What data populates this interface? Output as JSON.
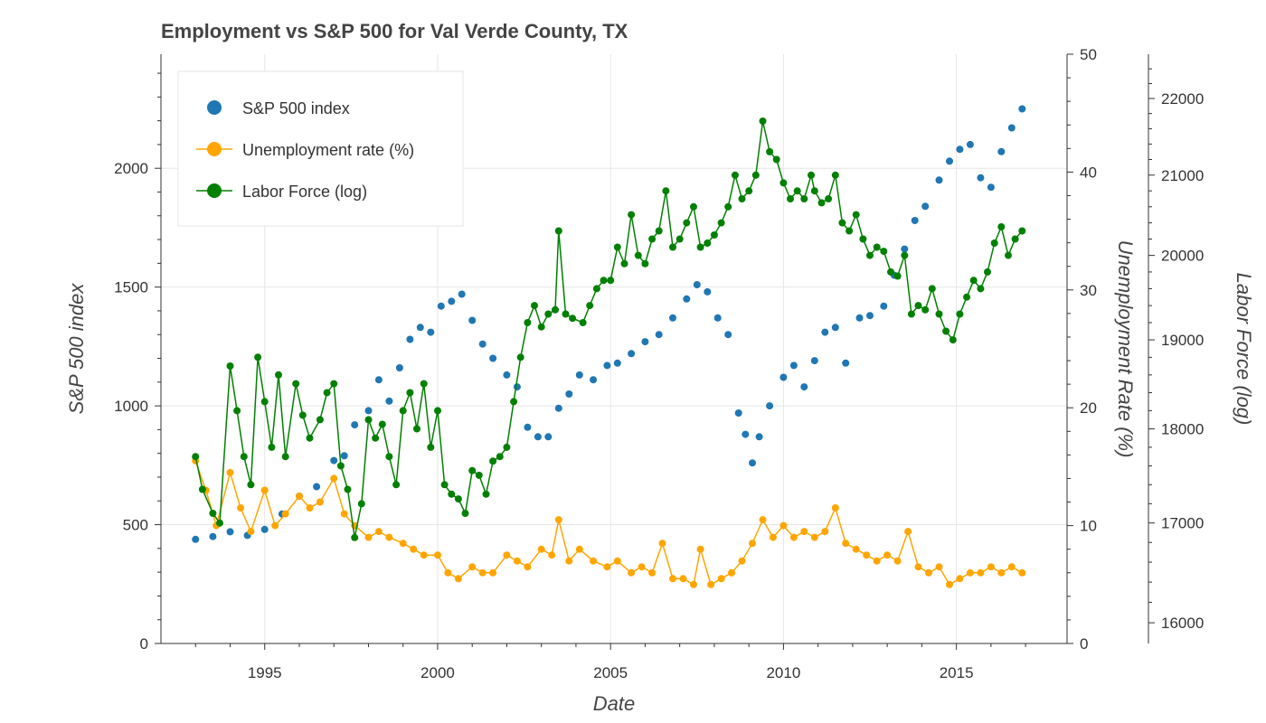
{
  "chart_data": {
    "type": "line",
    "title": "Employment vs S&P 500 for Val Verde County, TX",
    "xlabel": "Date",
    "ylabel": "S&P 500 index",
    "y2label": "Unemployment Rate (%)",
    "y3label": "Labor Force (log)",
    "xlim": [
      1992.0,
      2018.2
    ],
    "ylim": [
      0,
      2480
    ],
    "y2lim": [
      0,
      50
    ],
    "y3lim": [
      15800,
      22600
    ],
    "x_ticks": [
      "1995",
      "2000",
      "2005",
      "2010",
      "2015"
    ],
    "y_ticks": [
      "0",
      "500",
      "1000",
      "1500",
      "2000"
    ],
    "y2_ticks": [
      "0",
      "10",
      "20",
      "30",
      "40",
      "50"
    ],
    "y3_ticks": [
      "16000",
      "17000",
      "18000",
      "19000",
      "20000",
      "21000",
      "22000"
    ],
    "grid": true,
    "legend_position": "top-left",
    "legend": [
      "S&P 500 index",
      "Unemployment rate (%)",
      "Labor Force (log)"
    ],
    "colors": {
      "sp500": "#1f77b4",
      "unemployment": "#FFA500",
      "labor_force": "#008000"
    },
    "series": [
      {
        "name": "S&P 500 index",
        "axis": "left",
        "style": "scatter",
        "points": [
          [
            1993.0,
            438
          ],
          [
            1993.5,
            450
          ],
          [
            1994.0,
            470
          ],
          [
            1994.5,
            455
          ],
          [
            1995.0,
            480
          ],
          [
            1995.5,
            545
          ],
          [
            1996.0,
            620
          ],
          [
            1996.5,
            660
          ],
          [
            1997.0,
            770
          ],
          [
            1997.3,
            790
          ],
          [
            1997.6,
            920
          ],
          [
            1998.0,
            980
          ],
          [
            1998.3,
            1110
          ],
          [
            1998.6,
            1020
          ],
          [
            1998.9,
            1160
          ],
          [
            1999.2,
            1280
          ],
          [
            1999.5,
            1330
          ],
          [
            1999.8,
            1310
          ],
          [
            2000.1,
            1420
          ],
          [
            2000.4,
            1440
          ],
          [
            2000.7,
            1470
          ],
          [
            2001.0,
            1360
          ],
          [
            2001.3,
            1260
          ],
          [
            2001.6,
            1200
          ],
          [
            2002.0,
            1130
          ],
          [
            2002.3,
            1080
          ],
          [
            2002.6,
            910
          ],
          [
            2002.9,
            870
          ],
          [
            2003.2,
            870
          ],
          [
            2003.5,
            990
          ],
          [
            2003.8,
            1050
          ],
          [
            2004.1,
            1130
          ],
          [
            2004.5,
            1110
          ],
          [
            2004.9,
            1170
          ],
          [
            2005.2,
            1180
          ],
          [
            2005.6,
            1220
          ],
          [
            2006.0,
            1270
          ],
          [
            2006.4,
            1300
          ],
          [
            2006.8,
            1370
          ],
          [
            2007.2,
            1450
          ],
          [
            2007.5,
            1510
          ],
          [
            2007.8,
            1480
          ],
          [
            2008.1,
            1370
          ],
          [
            2008.4,
            1300
          ],
          [
            2008.7,
            970
          ],
          [
            2008.9,
            880
          ],
          [
            2009.1,
            760
          ],
          [
            2009.3,
            870
          ],
          [
            2009.6,
            1000
          ],
          [
            2010.0,
            1120
          ],
          [
            2010.3,
            1170
          ],
          [
            2010.6,
            1080
          ],
          [
            2010.9,
            1190
          ],
          [
            2011.2,
            1310
          ],
          [
            2011.5,
            1330
          ],
          [
            2011.8,
            1180
          ],
          [
            2012.2,
            1370
          ],
          [
            2012.5,
            1380
          ],
          [
            2012.9,
            1420
          ],
          [
            2013.2,
            1550
          ],
          [
            2013.5,
            1660
          ],
          [
            2013.8,
            1780
          ],
          [
            2014.1,
            1840
          ],
          [
            2014.5,
            1950
          ],
          [
            2014.8,
            2030
          ],
          [
            2015.1,
            2080
          ],
          [
            2015.4,
            2100
          ],
          [
            2015.7,
            1960
          ],
          [
            2016.0,
            1920
          ],
          [
            2016.3,
            2070
          ],
          [
            2016.6,
            2170
          ],
          [
            2016.9,
            2250
          ]
        ]
      },
      {
        "name": "Unemployment rate (%)",
        "axis": "right1",
        "style": "line+marker",
        "points": [
          [
            1993.0,
            15.5
          ],
          [
            1993.3,
            13.0
          ],
          [
            1993.6,
            10.0
          ],
          [
            1994.0,
            14.5
          ],
          [
            1994.3,
            11.5
          ],
          [
            1994.6,
            9.5
          ],
          [
            1995.0,
            13.0
          ],
          [
            1995.3,
            10.0
          ],
          [
            1995.6,
            11.0
          ],
          [
            1996.0,
            12.5
          ],
          [
            1996.3,
            11.5
          ],
          [
            1996.6,
            12.0
          ],
          [
            1997.0,
            14.0
          ],
          [
            1997.3,
            11.0
          ],
          [
            1997.6,
            10.0
          ],
          [
            1998.0,
            9.0
          ],
          [
            1998.3,
            9.5
          ],
          [
            1998.6,
            9.0
          ],
          [
            1999.0,
            8.5
          ],
          [
            1999.3,
            8.0
          ],
          [
            1999.6,
            7.5
          ],
          [
            2000.0,
            7.5
          ],
          [
            2000.3,
            6.0
          ],
          [
            2000.6,
            5.5
          ],
          [
            2001.0,
            6.5
          ],
          [
            2001.3,
            6.0
          ],
          [
            2001.6,
            6.0
          ],
          [
            2002.0,
            7.5
          ],
          [
            2002.3,
            7.0
          ],
          [
            2002.6,
            6.5
          ],
          [
            2003.0,
            8.0
          ],
          [
            2003.3,
            7.5
          ],
          [
            2003.5,
            10.5
          ],
          [
            2003.8,
            7.0
          ],
          [
            2004.1,
            8.0
          ],
          [
            2004.5,
            7.0
          ],
          [
            2004.9,
            6.5
          ],
          [
            2005.2,
            7.0
          ],
          [
            2005.6,
            6.0
          ],
          [
            2005.9,
            6.5
          ],
          [
            2006.2,
            6.0
          ],
          [
            2006.5,
            8.5
          ],
          [
            2006.8,
            5.5
          ],
          [
            2007.1,
            5.5
          ],
          [
            2007.4,
            5.0
          ],
          [
            2007.6,
            8.0
          ],
          [
            2007.9,
            5.0
          ],
          [
            2008.2,
            5.5
          ],
          [
            2008.5,
            6.0
          ],
          [
            2008.8,
            7.0
          ],
          [
            2009.1,
            8.5
          ],
          [
            2009.4,
            10.5
          ],
          [
            2009.7,
            9.0
          ],
          [
            2010.0,
            10.0
          ],
          [
            2010.3,
            9.0
          ],
          [
            2010.6,
            9.5
          ],
          [
            2010.9,
            9.0
          ],
          [
            2011.2,
            9.5
          ],
          [
            2011.5,
            11.5
          ],
          [
            2011.8,
            8.5
          ],
          [
            2012.1,
            8.0
          ],
          [
            2012.4,
            7.5
          ],
          [
            2012.7,
            7.0
          ],
          [
            2013.0,
            7.5
          ],
          [
            2013.3,
            7.0
          ],
          [
            2013.6,
            9.5
          ],
          [
            2013.9,
            6.5
          ],
          [
            2014.2,
            6.0
          ],
          [
            2014.5,
            6.5
          ],
          [
            2014.8,
            5.0
          ],
          [
            2015.1,
            5.5
          ],
          [
            2015.4,
            6.0
          ],
          [
            2015.7,
            6.0
          ],
          [
            2016.0,
            6.5
          ],
          [
            2016.3,
            6.0
          ],
          [
            2016.6,
            6.5
          ],
          [
            2016.9,
            6.0
          ]
        ]
      },
      {
        "name": "Labor Force (log)",
        "axis": "right2",
        "style": "line+marker",
        "points": [
          [
            1993.0,
            17700
          ],
          [
            1993.2,
            17350
          ],
          [
            1993.5,
            17100
          ],
          [
            1993.7,
            17000
          ],
          [
            1994.0,
            18700
          ],
          [
            1994.2,
            18200
          ],
          [
            1994.4,
            17700
          ],
          [
            1994.6,
            17400
          ],
          [
            1994.8,
            18800
          ],
          [
            1995.0,
            18300
          ],
          [
            1995.2,
            17800
          ],
          [
            1995.4,
            18600
          ],
          [
            1995.6,
            17700
          ],
          [
            1995.9,
            18500
          ],
          [
            1996.1,
            18150
          ],
          [
            1996.3,
            17900
          ],
          [
            1996.6,
            18100
          ],
          [
            1996.8,
            18400
          ],
          [
            1997.0,
            18500
          ],
          [
            1997.2,
            17600
          ],
          [
            1997.4,
            17350
          ],
          [
            1997.6,
            16850
          ],
          [
            1997.8,
            17200
          ],
          [
            1998.0,
            18100
          ],
          [
            1998.2,
            17900
          ],
          [
            1998.4,
            18050
          ],
          [
            1998.6,
            17700
          ],
          [
            1998.8,
            17400
          ],
          [
            1999.0,
            18200
          ],
          [
            1999.2,
            18400
          ],
          [
            1999.4,
            18000
          ],
          [
            1999.6,
            18500
          ],
          [
            1999.8,
            17800
          ],
          [
            2000.0,
            18200
          ],
          [
            2000.2,
            17400
          ],
          [
            2000.4,
            17300
          ],
          [
            2000.6,
            17250
          ],
          [
            2000.8,
            17100
          ],
          [
            2001.0,
            17550
          ],
          [
            2001.2,
            17500
          ],
          [
            2001.4,
            17300
          ],
          [
            2001.6,
            17650
          ],
          [
            2001.8,
            17700
          ],
          [
            2002.0,
            17800
          ],
          [
            2002.2,
            18300
          ],
          [
            2002.4,
            18800
          ],
          [
            2002.6,
            19200
          ],
          [
            2002.8,
            19400
          ],
          [
            2003.0,
            19150
          ],
          [
            2003.2,
            19300
          ],
          [
            2003.4,
            19350
          ],
          [
            2003.5,
            20300
          ],
          [
            2003.7,
            19300
          ],
          [
            2003.9,
            19250
          ],
          [
            2004.2,
            19200
          ],
          [
            2004.4,
            19400
          ],
          [
            2004.6,
            19600
          ],
          [
            2004.8,
            19700
          ],
          [
            2005.0,
            19700
          ],
          [
            2005.2,
            20100
          ],
          [
            2005.4,
            19900
          ],
          [
            2005.6,
            20500
          ],
          [
            2005.8,
            20000
          ],
          [
            2006.0,
            19900
          ],
          [
            2006.2,
            20200
          ],
          [
            2006.4,
            20300
          ],
          [
            2006.6,
            20800
          ],
          [
            2006.8,
            20100
          ],
          [
            2007.0,
            20200
          ],
          [
            2007.2,
            20400
          ],
          [
            2007.4,
            20600
          ],
          [
            2007.6,
            20100
          ],
          [
            2007.8,
            20150
          ],
          [
            2008.0,
            20250
          ],
          [
            2008.2,
            20400
          ],
          [
            2008.4,
            20600
          ],
          [
            2008.6,
            21000
          ],
          [
            2008.8,
            20700
          ],
          [
            2009.0,
            20800
          ],
          [
            2009.2,
            21000
          ],
          [
            2009.4,
            21700
          ],
          [
            2009.6,
            21300
          ],
          [
            2009.8,
            21200
          ],
          [
            2010.0,
            20900
          ],
          [
            2010.2,
            20700
          ],
          [
            2010.4,
            20800
          ],
          [
            2010.6,
            20700
          ],
          [
            2010.8,
            21000
          ],
          [
            2010.9,
            20800
          ],
          [
            2011.1,
            20650
          ],
          [
            2011.3,
            20700
          ],
          [
            2011.5,
            21000
          ],
          [
            2011.7,
            20400
          ],
          [
            2011.9,
            20300
          ],
          [
            2012.1,
            20500
          ],
          [
            2012.3,
            20200
          ],
          [
            2012.5,
            20000
          ],
          [
            2012.7,
            20100
          ],
          [
            2012.9,
            20050
          ],
          [
            2013.1,
            19800
          ],
          [
            2013.3,
            19750
          ],
          [
            2013.5,
            20000
          ],
          [
            2013.7,
            19300
          ],
          [
            2013.9,
            19400
          ],
          [
            2014.1,
            19350
          ],
          [
            2014.3,
            19600
          ],
          [
            2014.5,
            19300
          ],
          [
            2014.7,
            19100
          ],
          [
            2014.9,
            19000
          ],
          [
            2015.1,
            19300
          ],
          [
            2015.3,
            19500
          ],
          [
            2015.5,
            19700
          ],
          [
            2015.7,
            19600
          ],
          [
            2015.9,
            19800
          ],
          [
            2016.1,
            20150
          ],
          [
            2016.3,
            20350
          ],
          [
            2016.5,
            20000
          ],
          [
            2016.7,
            20200
          ],
          [
            2016.9,
            20300
          ]
        ]
      }
    ]
  }
}
